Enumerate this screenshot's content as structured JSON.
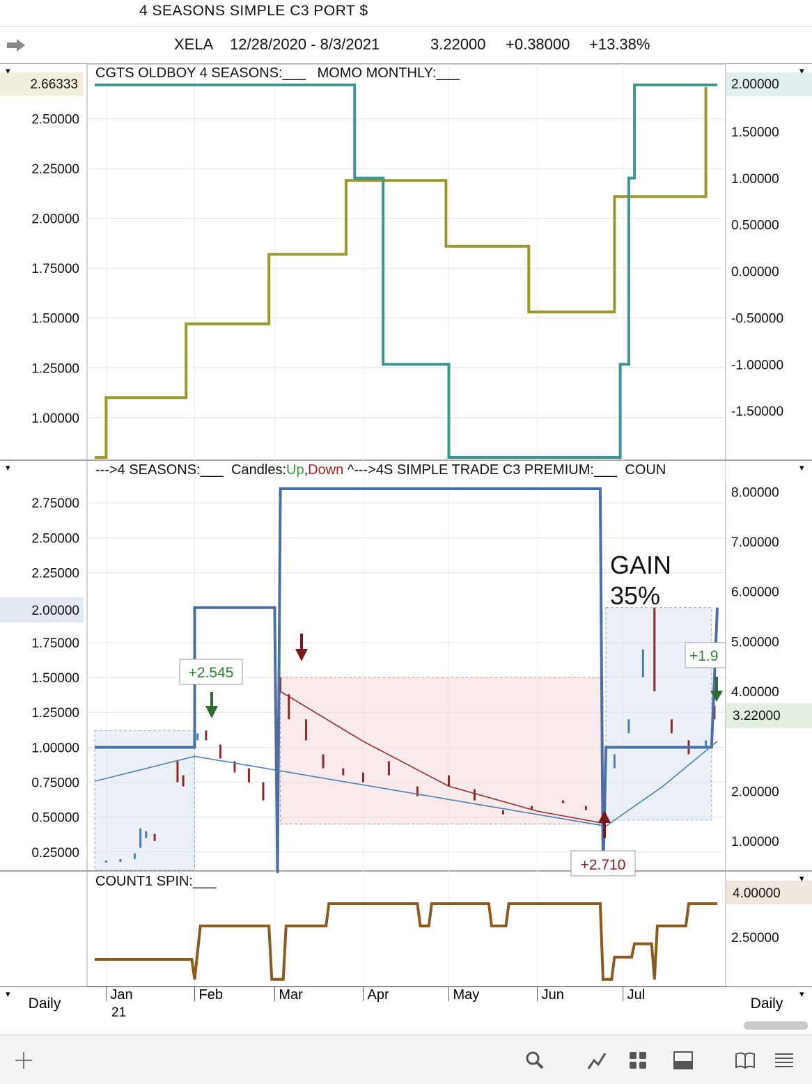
{
  "window": {
    "title": "4 SEASONS SIMPLE C3 PORT $"
  },
  "quote": {
    "symbol": "XELA",
    "range": "12/28/2020 - 8/3/2021",
    "last": "3.22000",
    "change": "+0.38000",
    "pct": "+13.38%"
  },
  "icons": [
    "forward-arrow-icon",
    "add-icon",
    "search-icon",
    "chart-style-icon",
    "layout-grid-icon",
    "panel-icon",
    "book-icon",
    "menu-icon"
  ],
  "chart_data": [
    {
      "panel": "top",
      "type": "line",
      "title": "CGTS OLDBOY 4 SEASONS:___   MOMO MONTHLY:___",
      "left_axis": {
        "ticks": [
          "2.50000",
          "2.25000",
          "2.00000",
          "1.75000",
          "1.50000",
          "1.25000",
          "1.00000"
        ],
        "current": "2.66333",
        "range": [
          0.8,
          2.67
        ]
      },
      "right_axis": {
        "ticks": [
          "1.50000",
          "1.00000",
          "0.50000",
          "0.00000",
          "-0.50000",
          "-1.00000",
          "-1.50000"
        ],
        "current": "2.00000",
        "range": [
          -2.0,
          2.0
        ]
      },
      "series": [
        {
          "name": "CGTS OLDBOY 4 SEASONS",
          "axis": "left",
          "color": "#9a9a2c",
          "points": [
            [
              "2020-12-28",
              0.8
            ],
            [
              "2021-01-01",
              0.8
            ],
            [
              "2021-01-01",
              1.1
            ],
            [
              "2021-01-29",
              1.1
            ],
            [
              "2021-01-29",
              1.47
            ],
            [
              "2021-02-27",
              1.47
            ],
            [
              "2021-02-27",
              1.82
            ],
            [
              "2021-03-26",
              1.82
            ],
            [
              "2021-03-26",
              2.19
            ],
            [
              "2021-04-30",
              2.19
            ],
            [
              "2021-04-30",
              1.86
            ],
            [
              "2021-05-29",
              1.86
            ],
            [
              "2021-05-29",
              1.53
            ],
            [
              "2021-06-28",
              1.53
            ],
            [
              "2021-06-28",
              2.11
            ],
            [
              "2021-07-30",
              2.11
            ],
            [
              "2021-07-30",
              2.66
            ]
          ]
        },
        {
          "name": "MOMO MONTHLY",
          "axis": "right",
          "color": "#3f9494",
          "points": [
            [
              "2020-12-28",
              2.0
            ],
            [
              "2021-03-29",
              2.0
            ],
            [
              "2021-03-29",
              1.0
            ],
            [
              "2021-04-08",
              1.0
            ],
            [
              "2021-04-08",
              -1.0
            ],
            [
              "2021-05-01",
              -1.0
            ],
            [
              "2021-05-01",
              -2.0
            ],
            [
              "2021-06-30",
              -2.0
            ],
            [
              "2021-06-30",
              -1.0
            ],
            [
              "2021-07-03",
              -1.0
            ],
            [
              "2021-07-03",
              1.0
            ],
            [
              "2021-07-05",
              1.0
            ],
            [
              "2021-07-05",
              2.0
            ],
            [
              "2021-08-03",
              2.0
            ]
          ]
        }
      ]
    },
    {
      "panel": "middle",
      "type": "line",
      "title_parts": [
        "--->4 SEASONS:___  Candles:",
        "Up",
        ",",
        "Down",
        " ^--->4S SIMPLE TRADE C3 PREMIUM:___  COUN"
      ],
      "left_axis": {
        "ticks": [
          "2.75000",
          "2.50000",
          "2.25000",
          "1.75000",
          "1.50000",
          "1.25000",
          "1.00000",
          "0.75000",
          "0.50000",
          "0.25000"
        ],
        "current": "2.00000",
        "range": [
          0.15,
          2.9
        ]
      },
      "right_axis": {
        "ticks": [
          "8.00000",
          "7.00000",
          "6.00000",
          "5.00000",
          "4.00000",
          "2.00000",
          "1.00000"
        ],
        "current": "3.22000",
        "range": [
          0.5,
          8.2
        ]
      },
      "series": [
        {
          "name": "4 SEASONS",
          "axis": "left",
          "color": "#4a6fa5",
          "points": [
            [
              "2020-12-28",
              1.0
            ],
            [
              "2021-02-01",
              1.0
            ],
            [
              "2021-02-01",
              2.0
            ],
            [
              "2021-03-01",
              2.0
            ],
            [
              "2021-03-02",
              0.1
            ],
            [
              "2021-03-03",
              2.85
            ],
            [
              "2021-06-23",
              2.85
            ],
            [
              "2021-06-24",
              0.1
            ],
            [
              "2021-06-25",
              1.0
            ],
            [
              "2021-08-01",
              1.0
            ],
            [
              "2021-08-03",
              2.0
            ]
          ]
        },
        {
          "name": "4S SIMPLE TRADE C3 PREMIUM",
          "axis": "right",
          "color": "#9a2a2a",
          "points": [
            [
              "2021-03-03",
              4.0
            ],
            [
              "2021-04-01",
              3.0
            ],
            [
              "2021-05-01",
              2.1
            ],
            [
              "2021-06-01",
              1.6
            ],
            [
              "2021-06-25",
              1.35
            ]
          ]
        },
        {
          "name": "Trend (blue)",
          "axis": "right",
          "color": "#4a7fb5",
          "points": [
            [
              "2020-12-28",
              2.2
            ],
            [
              "2021-02-01",
              2.7
            ],
            [
              "2021-06-25",
              1.3
            ],
            [
              "2021-07-15",
              2.1
            ],
            [
              "2021-08-03",
              3.0
            ]
          ]
        }
      ],
      "candles": [
        [
          "2021-01-01",
          0.18,
          0.19
        ],
        [
          "2021-01-06",
          0.18,
          0.2
        ],
        [
          "2021-01-11",
          0.2,
          0.24
        ],
        [
          "2021-01-13",
          0.28,
          0.42
        ],
        [
          "2021-01-15",
          0.35,
          0.4
        ],
        [
          "2021-01-18",
          0.38,
          0.33
        ],
        [
          "2021-01-26",
          0.9,
          0.75
        ],
        [
          "2021-01-28",
          0.8,
          0.72
        ],
        [
          "2021-02-02",
          1.05,
          1.1
        ],
        [
          "2021-02-05",
          1.12,
          1.05
        ],
        [
          "2021-02-10",
          1.02,
          0.92
        ],
        [
          "2021-02-15",
          0.9,
          0.82
        ],
        [
          "2021-02-20",
          0.85,
          0.75
        ],
        [
          "2021-02-25",
          0.75,
          0.62
        ],
        [
          "2021-03-03",
          1.5,
          1.4
        ],
        [
          "2021-03-06",
          1.38,
          1.2
        ],
        [
          "2021-03-12",
          1.2,
          1.05
        ],
        [
          "2021-03-18",
          0.95,
          0.85
        ],
        [
          "2021-03-25",
          0.85,
          0.8
        ],
        [
          "2021-04-01",
          0.82,
          0.75
        ],
        [
          "2021-04-10",
          0.9,
          0.8
        ],
        [
          "2021-04-20",
          0.72,
          0.65
        ],
        [
          "2021-05-01",
          0.8,
          0.72
        ],
        [
          "2021-05-10",
          0.7,
          0.62
        ],
        [
          "2021-05-20",
          0.55,
          0.52
        ],
        [
          "2021-05-30",
          0.58,
          0.55
        ],
        [
          "2021-06-10",
          0.62,
          0.6
        ],
        [
          "2021-06-18",
          0.58,
          0.55
        ],
        [
          "2021-06-24",
          0.5,
          0.48
        ],
        [
          "2021-06-28",
          0.85,
          0.95
        ],
        [
          "2021-07-03",
          1.1,
          1.2
        ],
        [
          "2021-07-08",
          1.5,
          1.7
        ],
        [
          "2021-07-12",
          2.0,
          1.4
        ],
        [
          "2021-07-18",
          1.2,
          1.1
        ],
        [
          "2021-07-24",
          1.05,
          0.95
        ],
        [
          "2021-07-30",
          1.0,
          1.05
        ],
        [
          "2021-08-02",
          1.3,
          1.2
        ]
      ],
      "annotations": [
        {
          "text": "+2.545",
          "color": "#2e7d32"
        },
        {
          "text": "+2.710",
          "color": "#8b1a1a"
        },
        {
          "text": "+1.9",
          "color": "#2e7d32"
        },
        {
          "text": "GAIN",
          "color": "#111"
        },
        {
          "text": "35%",
          "color": "#111"
        }
      ],
      "shaded_regions": [
        {
          "color": "#dde6f0",
          "x": [
            "2020-12-28",
            "2021-02-01"
          ],
          "y": [
            0.12,
            1.12
          ]
        },
        {
          "color": "#f5dede",
          "x": [
            "2021-03-03",
            "2021-06-24"
          ],
          "y": [
            0.45,
            1.5
          ]
        },
        {
          "color": "#dde6f0",
          "x": [
            "2021-06-25",
            "2021-08-01"
          ],
          "y": [
            0.48,
            2.0
          ]
        }
      ]
    },
    {
      "panel": "bottom",
      "type": "line",
      "title": "COUNT1 SPIN:___",
      "right_axis": {
        "ticks": [
          "2.50000"
        ],
        "current": "4.00000",
        "range": [
          0.5,
          4.5
        ]
      },
      "series": [
        {
          "name": "COUNT1 SPIN",
          "axis": "right",
          "color": "#8b5a1e",
          "points": [
            [
              "2020-12-28",
              1.5
            ],
            [
              "2021-01-31",
              1.5
            ],
            [
              "2021-02-01",
              0.6
            ],
            [
              "2021-02-03",
              3.0
            ],
            [
              "2021-02-27",
              3.0
            ],
            [
              "2021-02-28",
              0.6
            ],
            [
              "2021-03-04",
              0.6
            ],
            [
              "2021-03-05",
              3.0
            ],
            [
              "2021-03-19",
              3.0
            ],
            [
              "2021-03-20",
              4.0
            ],
            [
              "2021-04-20",
              4.0
            ],
            [
              "2021-04-21",
              3.0
            ],
            [
              "2021-04-24",
              3.0
            ],
            [
              "2021-04-25",
              4.0
            ],
            [
              "2021-05-15",
              4.0
            ],
            [
              "2021-05-16",
              3.0
            ],
            [
              "2021-05-21",
              3.0
            ],
            [
              "2021-05-22",
              4.0
            ],
            [
              "2021-06-23",
              4.0
            ],
            [
              "2021-06-24",
              0.6
            ],
            [
              "2021-06-27",
              0.6
            ],
            [
              "2021-06-28",
              1.6
            ],
            [
              "2021-07-04",
              1.6
            ],
            [
              "2021-07-05",
              2.2
            ],
            [
              "2021-07-11",
              2.2
            ],
            [
              "2021-07-12",
              0.6
            ],
            [
              "2021-07-13",
              3.0
            ],
            [
              "2021-07-23",
              3.0
            ],
            [
              "2021-07-24",
              4.0
            ],
            [
              "2021-08-03",
              4.0
            ]
          ]
        }
      ]
    }
  ],
  "x_axis": {
    "labels": [
      "Jan",
      "Feb",
      "Mar",
      "Apr",
      "May",
      "Jun",
      "Jul"
    ],
    "year_label": "21",
    "interval_left": "Daily",
    "interval_right": "Daily"
  },
  "menu_marks": [
    "▾",
    "▾",
    "▾",
    "▾",
    "▾",
    "▾",
    "▾"
  ]
}
